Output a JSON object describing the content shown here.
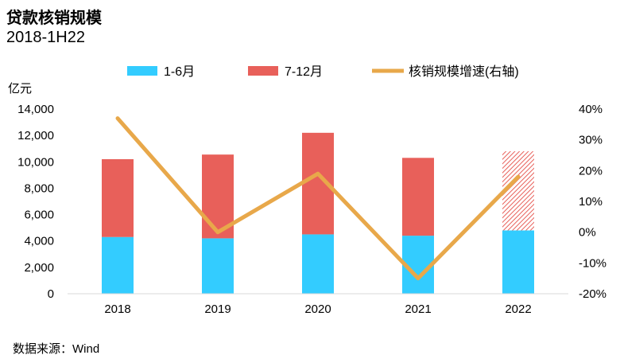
{
  "header": {
    "title": "贷款核销规模",
    "subtitle": "2018-1H22"
  },
  "source": "数据来源：Wind",
  "colors": {
    "h1": "#33ccff",
    "h2": "#e8605a",
    "growth": "#e8a84a"
  },
  "chart_data": {
    "type": "bar",
    "categories": [
      "2018",
      "2019",
      "2020",
      "2021",
      "2022"
    ],
    "series": [
      {
        "name": "1-6月",
        "kind": "stacked-bar",
        "values": [
          4300,
          4200,
          4500,
          4400,
          4800
        ]
      },
      {
        "name": "7-12月",
        "kind": "stacked-bar",
        "values": [
          5900,
          6350,
          7700,
          5900,
          6000
        ],
        "estimated_last": true
      },
      {
        "name": "核销规模增速(右轴)",
        "kind": "line",
        "axis": "right",
        "values": [
          37,
          0,
          19,
          -15,
          18
        ]
      }
    ],
    "ylabel_left": "亿元",
    "ylim_left": [
      0,
      14000
    ],
    "yticks_left": [
      "0",
      "2,000",
      "4,000",
      "6,000",
      "8,000",
      "10,000",
      "12,000",
      "14,000"
    ],
    "ylim_right": [
      -20,
      40
    ],
    "yticks_right": [
      "-20%",
      "-10%",
      "0%",
      "10%",
      "20%",
      "30%",
      "40%"
    ],
    "legend_position": "top",
    "grid": false
  }
}
